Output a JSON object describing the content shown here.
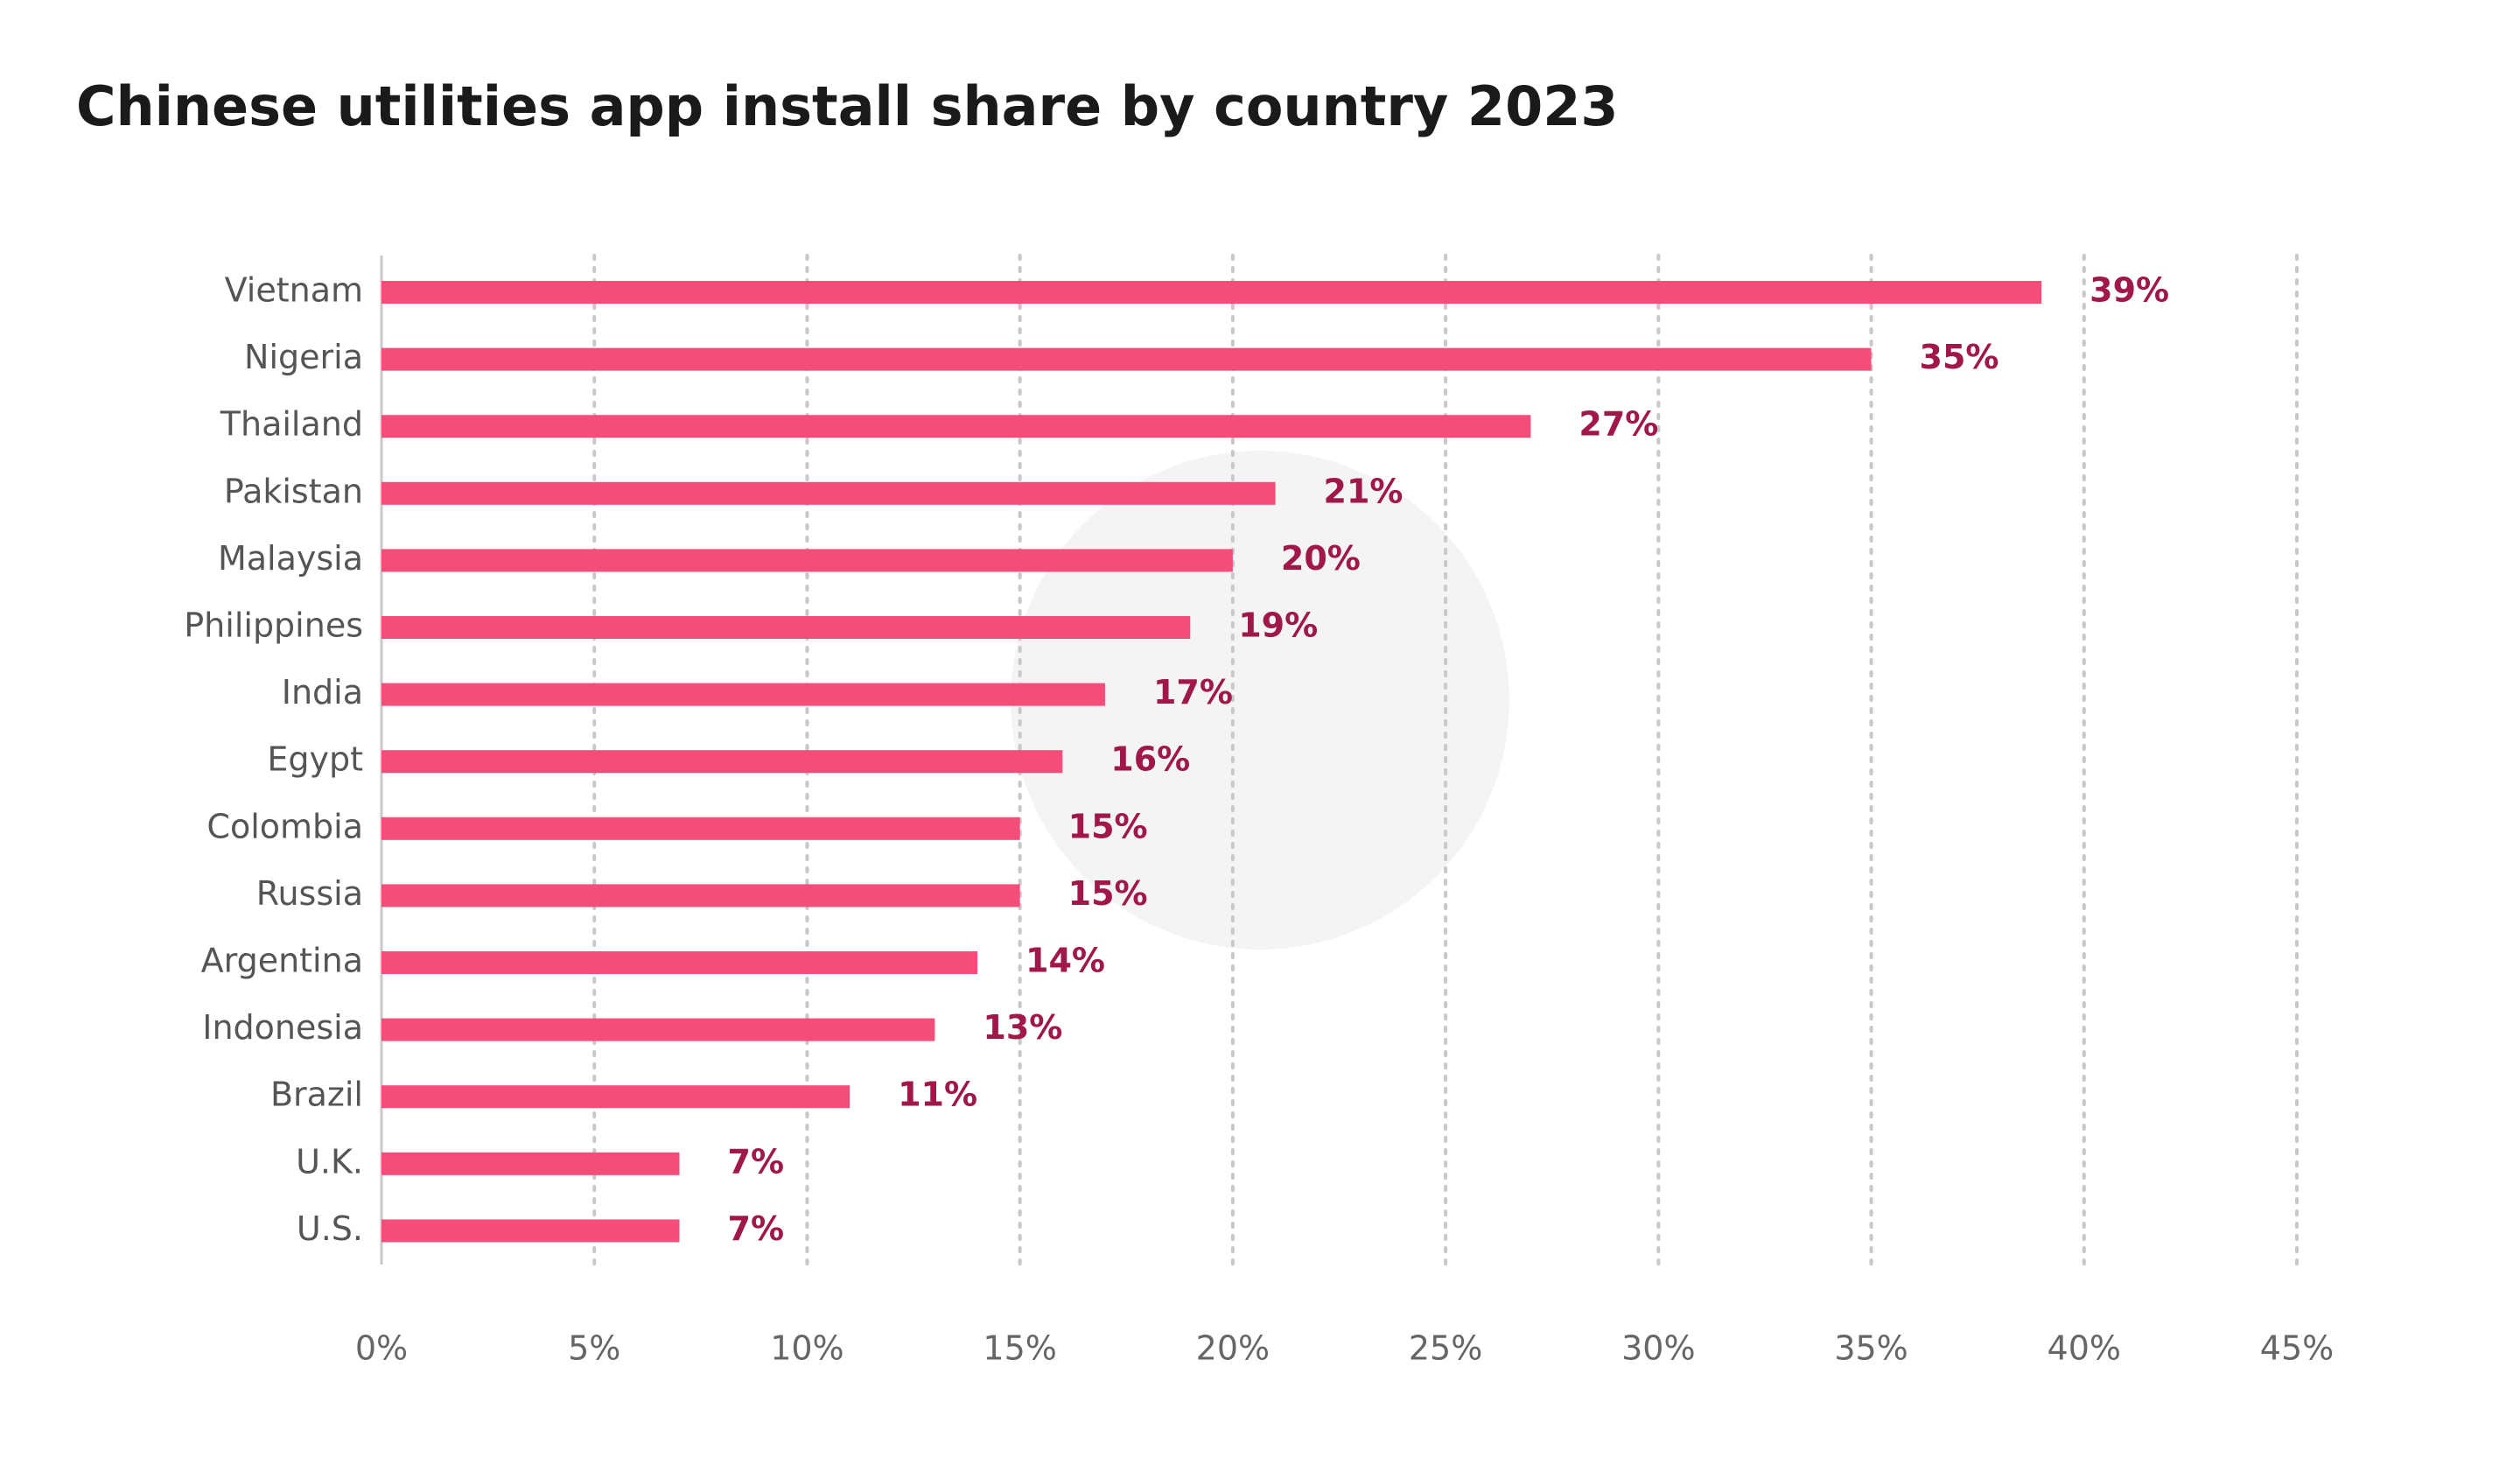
{
  "chart_data": {
    "type": "bar",
    "orientation": "horizontal",
    "title": "Chinese utilities app install share by country 2023",
    "categories": [
      "Vietnam",
      "Nigeria",
      "Thailand",
      "Pakistan",
      "Malaysia",
      "Philippines",
      "India",
      "Egypt",
      "Colombia",
      "Russia",
      "Argentina",
      "Indonesia",
      "Brazil",
      "U.K.",
      "U.S."
    ],
    "values": [
      39,
      35,
      27,
      21,
      20,
      19,
      17,
      16,
      15,
      15,
      14,
      13,
      11,
      7,
      7
    ],
    "value_labels": [
      "39%",
      "35%",
      "27%",
      "21%",
      "20%",
      "19%",
      "17%",
      "16%",
      "15%",
      "15%",
      "14%",
      "13%",
      "11%",
      "7%",
      "7%"
    ],
    "color": "#f54d79",
    "xlim": [
      0,
      45
    ],
    "xticks": [
      {
        "value": 0,
        "label": "0%"
      },
      {
        "value": 5,
        "label": "5%"
      },
      {
        "value": 10,
        "label": "10%"
      },
      {
        "value": 15,
        "label": "15%"
      },
      {
        "value": 20,
        "label": "20%"
      },
      {
        "value": 25,
        "label": "25%"
      },
      {
        "value": 30,
        "label": "30%"
      },
      {
        "value": 35,
        "label": "35%"
      },
      {
        "value": 40,
        "label": "40%"
      },
      {
        "value": 45,
        "label": "45%"
      }
    ],
    "grid": true
  }
}
